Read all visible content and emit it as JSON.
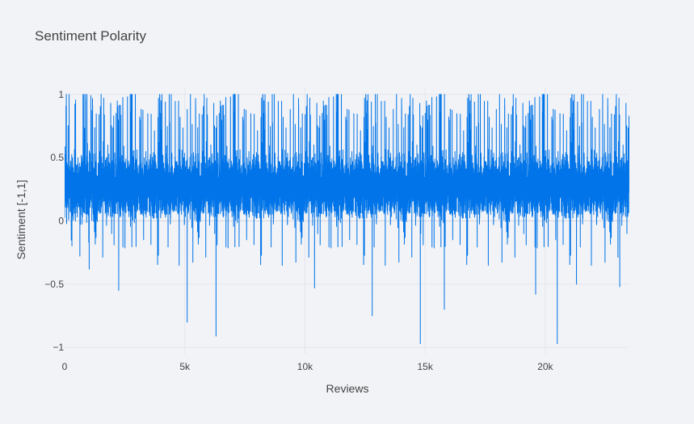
{
  "chart_data": {
    "type": "line",
    "title": "Sentiment Polarity",
    "xlabel": "Reviews",
    "ylabel": "Sentiment [-1,1]",
    "xlim": [
      0,
      23500
    ],
    "ylim": [
      -1.05,
      1.05
    ],
    "x_ticks": [
      0,
      5000,
      10000,
      15000,
      20000
    ],
    "x_tick_labels": [
      "0",
      "5k",
      "10k",
      "15k",
      "20k"
    ],
    "y_ticks": [
      1,
      0.5,
      0,
      -0.5,
      -1
    ],
    "y_tick_labels": [
      "1",
      "0.5",
      "0",
      "−0.5",
      "−1"
    ],
    "grid": true,
    "series": [
      {
        "color": "#0074e8",
        "n_points": 23486,
        "band": {
          "typical_low": -0.02,
          "typical_high": 0.6,
          "center": 0.27
        },
        "notable_points": [
          {
            "x": 5100,
            "y": -0.8
          },
          {
            "x": 6300,
            "y": -0.91
          },
          {
            "x": 2250,
            "y": -0.55
          },
          {
            "x": 10400,
            "y": -0.53
          },
          {
            "x": 12800,
            "y": -0.75
          },
          {
            "x": 14800,
            "y": -0.97
          },
          {
            "x": 15800,
            "y": -0.7
          },
          {
            "x": 19600,
            "y": -0.58
          },
          {
            "x": 20500,
            "y": -0.97
          },
          {
            "x": 21300,
            "y": -0.5
          },
          {
            "x": 23100,
            "y": -0.52
          }
        ]
      }
    ]
  }
}
